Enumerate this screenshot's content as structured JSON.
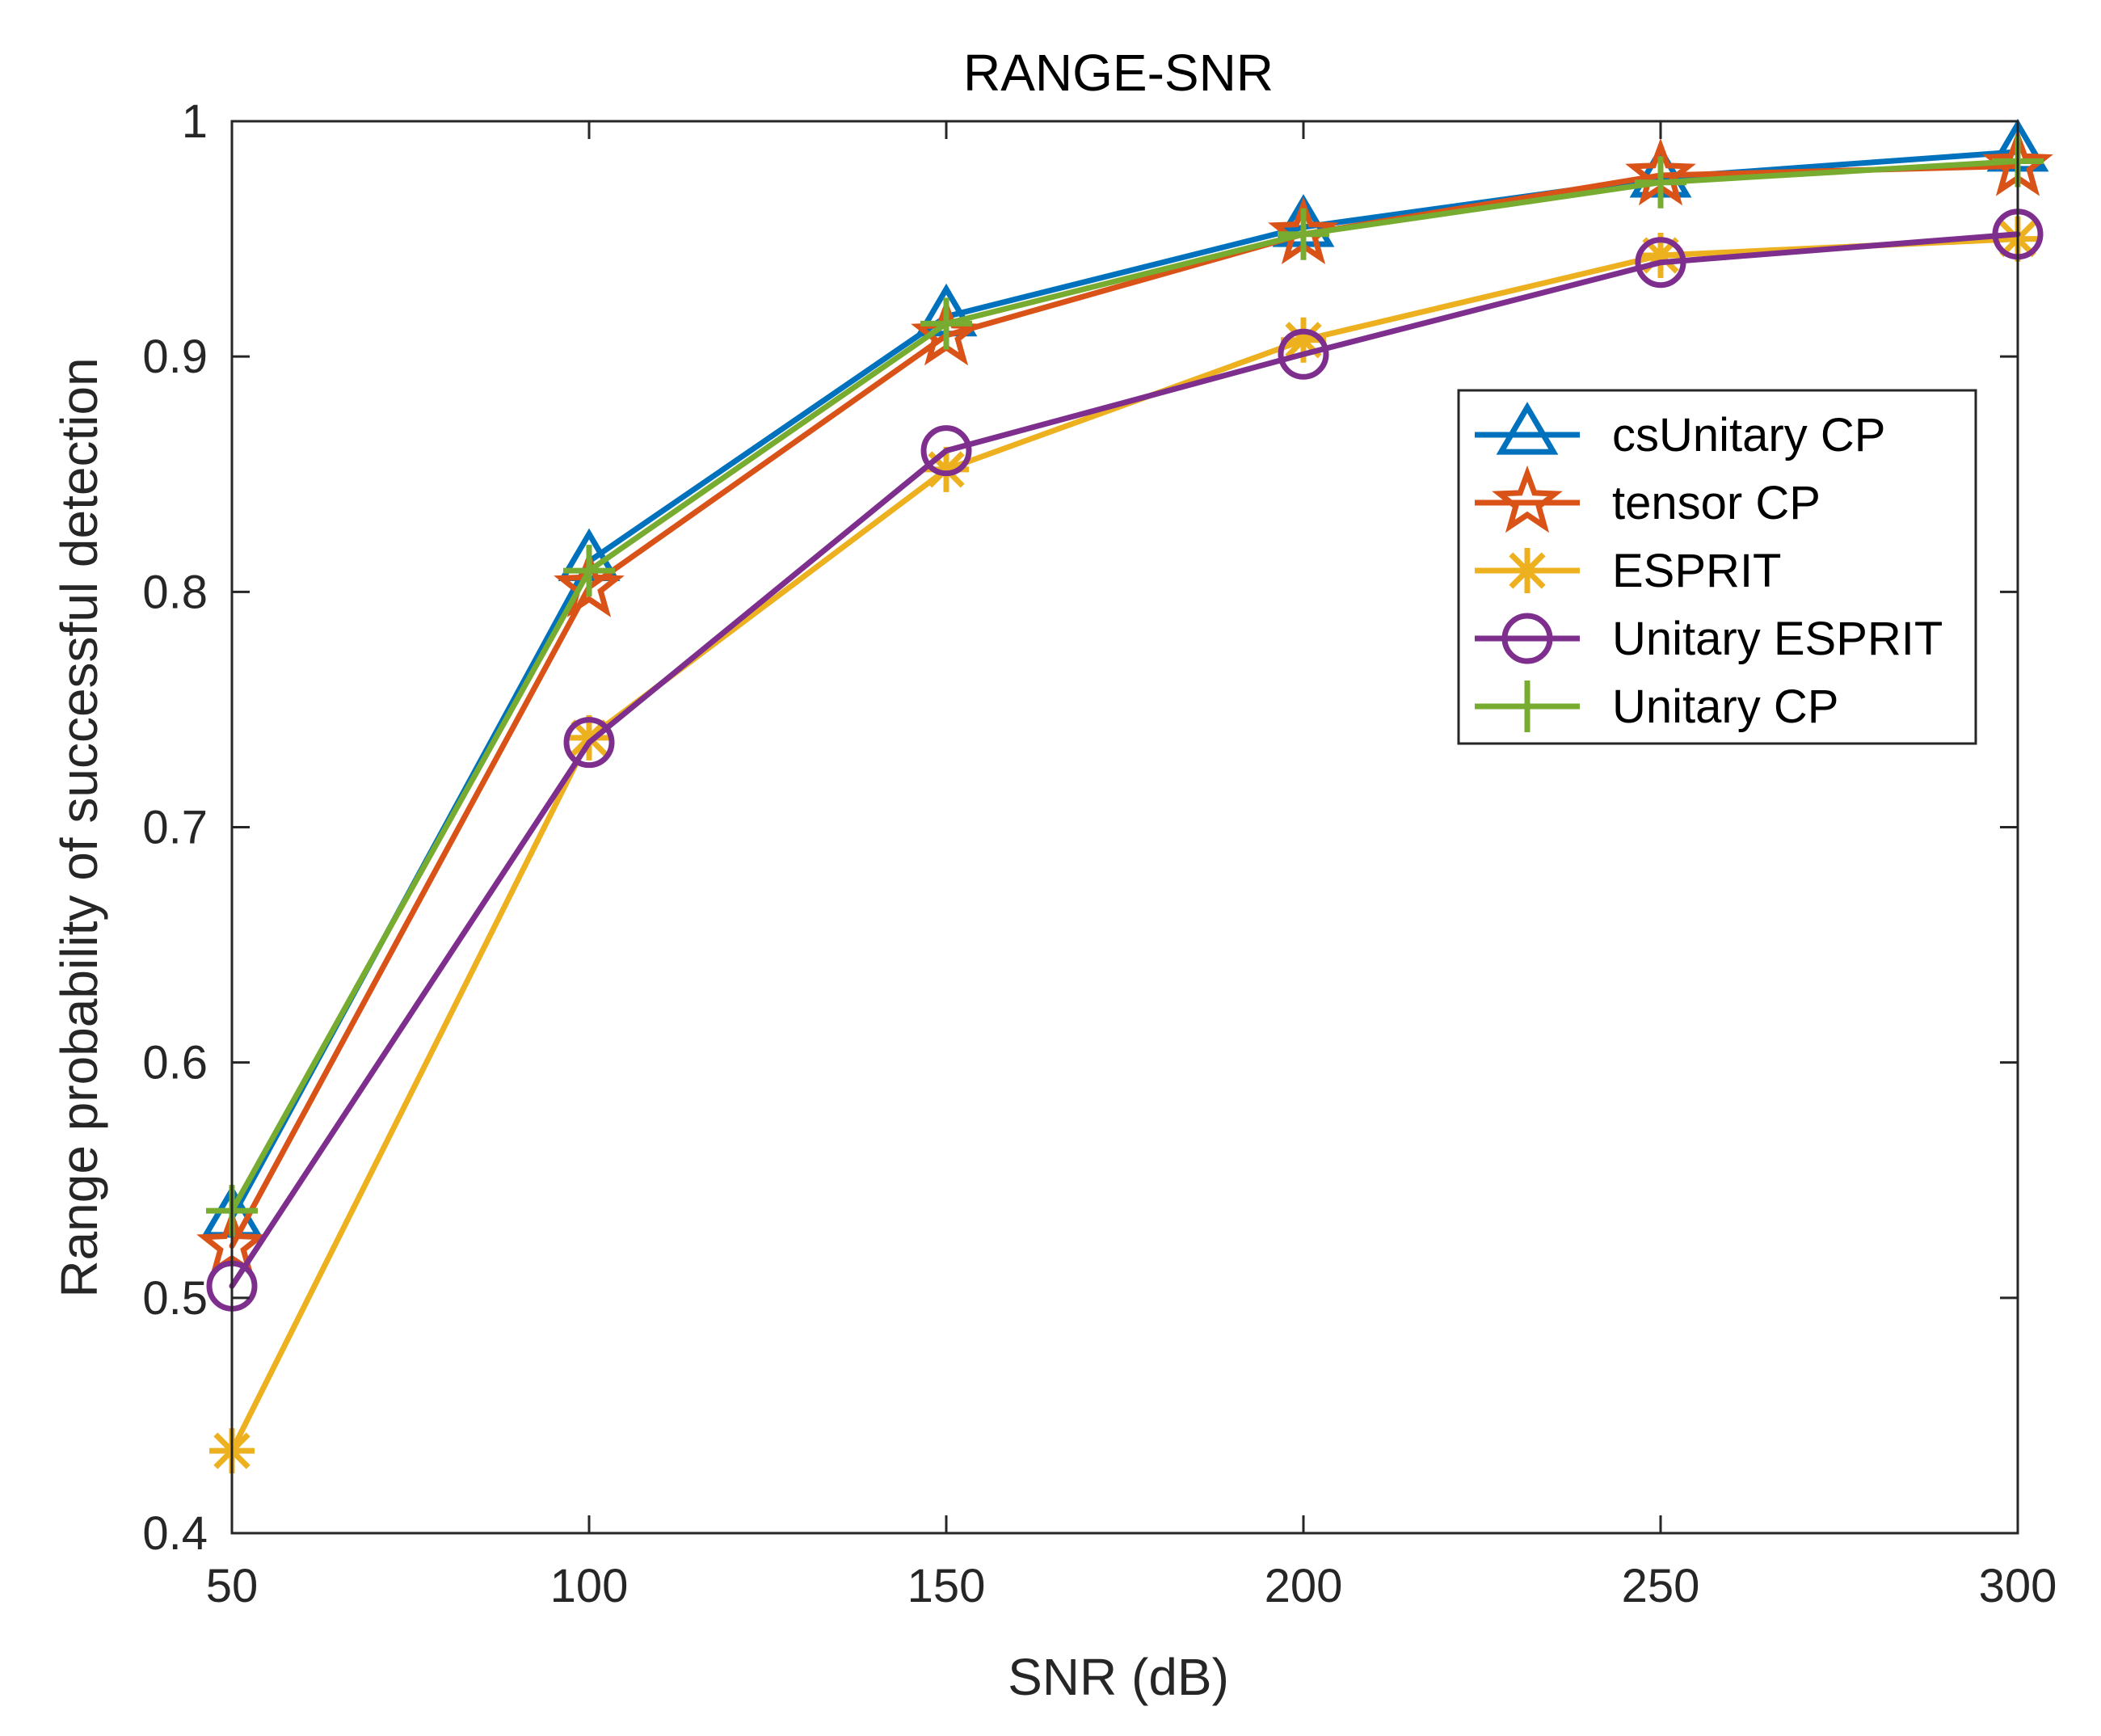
{
  "chart_data": {
    "type": "line",
    "title": "RANGE-SNR",
    "xlabel": "SNR (dB)",
    "ylabel": "Range probability of successful detection",
    "x": [
      50,
      100,
      150,
      200,
      250,
      300
    ],
    "xlim": [
      50,
      300
    ],
    "ylim": [
      0.4,
      1.0
    ],
    "xticks": [
      50,
      100,
      150,
      200,
      250,
      300
    ],
    "yticks": [
      0.4,
      0.5,
      0.6,
      0.7,
      0.8,
      0.9,
      1.0
    ],
    "xtick_labels": [
      "50",
      "100",
      "150",
      "200",
      "250",
      "300"
    ],
    "ytick_labels": [
      "0.4",
      "0.5",
      "0.6",
      "0.7",
      "0.8",
      "0.9",
      "1"
    ],
    "grid": false,
    "legend_position": "right, below top",
    "series": [
      {
        "name": "csUnitary CP",
        "marker": "triangle",
        "color": "#0072BD",
        "values": [
          0.534,
          0.813,
          0.917,
          0.955,
          0.976,
          0.987
        ]
      },
      {
        "name": "tensor CP",
        "marker": "star",
        "color": "#D95319",
        "values": [
          0.522,
          0.802,
          0.909,
          0.952,
          0.977,
          0.981
        ]
      },
      {
        "name": "ESPRIT",
        "marker": "asterisk",
        "color": "#EDB120",
        "values": [
          0.435,
          0.738,
          0.852,
          0.907,
          0.943,
          0.95
        ]
      },
      {
        "name": "Unitary ESPRIT",
        "marker": "circle",
        "color": "#7E2F8E",
        "values": [
          0.505,
          0.736,
          0.86,
          0.901,
          0.94,
          0.952
        ]
      },
      {
        "name": "Unitary CP",
        "marker": "plus",
        "color": "#77AC30",
        "values": [
          0.537,
          0.809,
          0.914,
          0.952,
          0.974,
          0.983
        ]
      }
    ]
  }
}
